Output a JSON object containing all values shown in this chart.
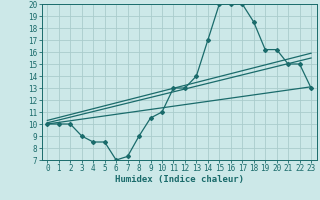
{
  "xlabel": "Humidex (Indice chaleur)",
  "bg_color": "#cce8e8",
  "grid_color": "#aacccc",
  "line_color": "#1a6b6b",
  "xlim": [
    -0.5,
    23.5
  ],
  "ylim": [
    7,
    20
  ],
  "xticks": [
    0,
    1,
    2,
    3,
    4,
    5,
    6,
    7,
    8,
    9,
    10,
    11,
    12,
    13,
    14,
    15,
    16,
    17,
    18,
    19,
    20,
    21,
    22,
    23
  ],
  "yticks": [
    7,
    8,
    9,
    10,
    11,
    12,
    13,
    14,
    15,
    16,
    17,
    18,
    19,
    20
  ],
  "main_x": [
    0,
    1,
    2,
    3,
    4,
    5,
    6,
    7,
    8,
    9,
    10,
    11,
    12,
    13,
    14,
    15,
    16,
    17,
    18,
    19,
    20,
    21,
    22,
    23
  ],
  "main_y": [
    10,
    10,
    10,
    9,
    8.5,
    8.5,
    7,
    7.3,
    9,
    10.5,
    11,
    13,
    13,
    14,
    17,
    20,
    20,
    20,
    18.5,
    16.2,
    16.2,
    15,
    15,
    13
  ],
  "line1_x": [
    0,
    23
  ],
  "line1_y": [
    10.1,
    15.5
  ],
  "line2_x": [
    0,
    23
  ],
  "line2_y": [
    10.3,
    15.9
  ],
  "line3_x": [
    0,
    23
  ],
  "line3_y": [
    10.0,
    13.1
  ],
  "tick_fontsize": 5.5,
  "xlabel_fontsize": 6.5
}
